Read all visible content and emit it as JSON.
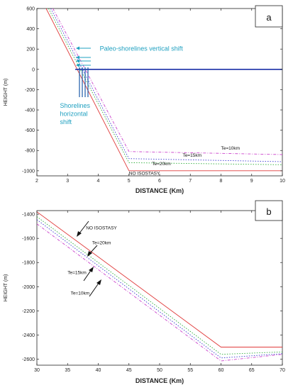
{
  "chart_data": [
    {
      "panel": "a",
      "type": "line",
      "xlabel": "DISTANCE (Km)",
      "ylabel": "HEIGHT (m)",
      "xlim": [
        2,
        10
      ],
      "ylim": [
        -1050,
        600
      ],
      "xticks": [
        2,
        3,
        4,
        5,
        6,
        7,
        8,
        9,
        10
      ],
      "yticks": [
        600,
        400,
        200,
        0,
        -200,
        -400,
        -600,
        -800,
        -1000
      ],
      "grid": false,
      "series": [
        {
          "name": "NO ISOSTASY",
          "color": "#e03a3a",
          "dash": "solid",
          "x": [
            2.3,
            5.0,
            10.0
          ],
          "y": [
            600,
            -1000,
            -1000
          ]
        },
        {
          "name": "Te=20km",
          "color": "#2fae3c",
          "dash": "dot",
          "x": [
            2.38,
            5.0,
            10.0
          ],
          "y": [
            600,
            -920,
            -940
          ]
        },
        {
          "name": "Te=15km",
          "color": "#3b3bd0",
          "dash": "dot",
          "x": [
            2.45,
            5.0,
            10.0
          ],
          "y": [
            600,
            -880,
            -910
          ]
        },
        {
          "name": "Te=10km",
          "color": "#cc44cc",
          "dash": "dashdot",
          "x": [
            2.52,
            5.0,
            10.0
          ],
          "y": [
            600,
            -810,
            -840
          ]
        },
        {
          "name": "",
          "color": "#1a2fa8",
          "dash": "solid",
          "x": [
            3.25,
            10.0
          ],
          "y": [
            0,
            0
          ]
        }
      ],
      "annotations": [
        {
          "text": "Paleo-shorelines vertical shift",
          "color": "#1fa0c0",
          "x": 4.05,
          "y": 185
        },
        {
          "text": "Shorelines",
          "color": "#1fa0c0",
          "x": 2.75,
          "y": -380
        },
        {
          "text": "horizontal",
          "color": "#1fa0c0",
          "x": 2.75,
          "y": -460
        },
        {
          "text": "shift",
          "color": "#1fa0c0",
          "x": 2.75,
          "y": -540
        },
        {
          "text": "Te=10km",
          "color": "#111",
          "x": 8.0,
          "y": -790
        },
        {
          "text": "Te=15km",
          "color": "#111",
          "x": 6.75,
          "y": -862
        },
        {
          "text": "Te=20km",
          "color": "#111",
          "x": 5.75,
          "y": -945
        },
        {
          "text": "NO ISOSTASY",
          "color": "#111",
          "x": 5.0,
          "y": -1040
        }
      ]
    },
    {
      "panel": "b",
      "type": "line",
      "xlabel": "DISTANCE (Km)",
      "ylabel": "HEIGHT (m)",
      "xlim": [
        30,
        70
      ],
      "ylim": [
        -2650,
        -1370
      ],
      "xticks": [
        30,
        35,
        40,
        45,
        50,
        55,
        60,
        65,
        70
      ],
      "yticks": [
        -1400,
        -1600,
        -1800,
        -2000,
        -2200,
        -2400,
        -2600
      ],
      "grid": false,
      "series": [
        {
          "name": "NO ISOSTASY",
          "color": "#e03a3a",
          "dash": "solid",
          "x": [
            30,
            60,
            70
          ],
          "y": [
            -1380,
            -2500,
            -2500
          ]
        },
        {
          "name": "Te=20km",
          "color": "#2fae3c",
          "dash": "dot",
          "x": [
            30,
            60,
            70
          ],
          "y": [
            -1420,
            -2560,
            -2540
          ]
        },
        {
          "name": "Te=15km",
          "color": "#3b3bd0",
          "dash": "dot",
          "x": [
            30,
            60,
            70
          ],
          "y": [
            -1445,
            -2590,
            -2555
          ]
        },
        {
          "name": "Te=10km",
          "color": "#cc44cc",
          "dash": "dashdot",
          "x": [
            30,
            60,
            70
          ],
          "y": [
            -1480,
            -2615,
            -2560
          ]
        }
      ],
      "annotations": [
        {
          "text": "NO ISOSTASY",
          "color": "#111",
          "x": 38.0,
          "y": -1525
        },
        {
          "text": "Te=20km",
          "color": "#111",
          "x": 39.0,
          "y": -1650
        },
        {
          "text": "Te=15km",
          "color": "#111",
          "x": 35.0,
          "y": -1895
        },
        {
          "text": "Te=10km",
          "color": "#111",
          "x": 35.5,
          "y": -2065
        }
      ]
    }
  ]
}
